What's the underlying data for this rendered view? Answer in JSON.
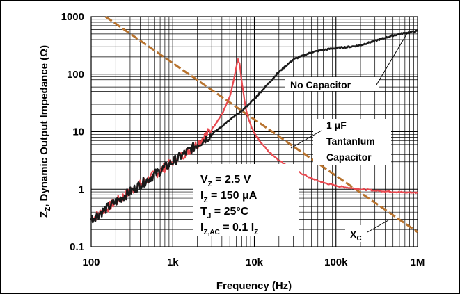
{
  "chart_data": {
    "type": "line",
    "xlabel": "Frequency (Hz)",
    "ylabel": {
      "main": "Z",
      "sub": "Z",
      "rest": ", Dynamic Output Impedance (Ω)"
    },
    "x_scale": "log",
    "y_scale": "log",
    "xlim": [
      100,
      1000000
    ],
    "ylim": [
      0.1,
      1000
    ],
    "x_ticks": [
      {
        "value": 100,
        "label": "100"
      },
      {
        "value": 1000,
        "label": "1k"
      },
      {
        "value": 10000,
        "label": "10k"
      },
      {
        "value": 100000,
        "label": "100k"
      },
      {
        "value": 1000000,
        "label": "1M"
      }
    ],
    "y_ticks": [
      {
        "value": 0.1,
        "label": "0.1"
      },
      {
        "value": 1,
        "label": "1"
      },
      {
        "value": 10,
        "label": "10"
      },
      {
        "value": 100,
        "label": "100"
      },
      {
        "value": 1000,
        "label": "1000"
      }
    ],
    "grid": true,
    "colors": {
      "no_capacitor": "#1a1a1a",
      "tantalum": "#e8484f",
      "xc": "#b8732e",
      "grid": "#000000"
    },
    "series": [
      {
        "key": "no_capacitor",
        "style": "solid",
        "x": [
          100,
          150,
          200,
          300,
          500,
          700,
          1000,
          1500,
          2000,
          3000,
          5000,
          7000,
          10000,
          15000,
          20000,
          30000,
          50000,
          70000,
          100000,
          150000,
          200000,
          300000,
          500000,
          700000,
          1000000
        ],
        "y": [
          0.3,
          0.45,
          0.6,
          0.9,
          1.5,
          2.1,
          3.0,
          4.5,
          6.0,
          9.0,
          16,
          23,
          37,
          70,
          110,
          180,
          240,
          265,
          285,
          300,
          320,
          380,
          470,
          520,
          560
        ]
      },
      {
        "key": "tantalum",
        "style": "solid",
        "x": [
          100,
          150,
          200,
          300,
          500,
          700,
          1000,
          1500,
          2000,
          3000,
          4000,
          5000,
          5500,
          6000,
          6300,
          6600,
          7000,
          7500,
          8000,
          9000,
          10000,
          12000,
          15000,
          20000,
          30000,
          50000,
          70000,
          100000,
          150000,
          200000,
          300000,
          500000,
          700000,
          1000000
        ],
        "y": [
          0.3,
          0.45,
          0.6,
          0.9,
          1.5,
          2.1,
          3.0,
          4.5,
          6.2,
          11,
          20,
          40,
          70,
          130,
          185,
          150,
          75,
          38,
          22,
          13,
          9.5,
          6.5,
          4.5,
          3.2,
          2.2,
          1.55,
          1.3,
          1.15,
          1.05,
          1.0,
          0.95,
          0.9,
          0.88,
          0.87
        ]
      },
      {
        "key": "xc",
        "style": "dashed",
        "x": [
          150,
          1000000
        ],
        "y": [
          1000,
          0.18
        ]
      }
    ],
    "annotations": [
      {
        "key": "no_cap",
        "lines": [
          "No Capacitor"
        ]
      },
      {
        "key": "tantalum",
        "lines": [
          "1 μF",
          "Tantanlum",
          "Capacitor"
        ]
      },
      {
        "key": "xc",
        "main": "X",
        "sub": "C"
      }
    ],
    "conditions": [
      {
        "main": "V",
        "sub": "Z",
        "rest": " = 2.5 V"
      },
      {
        "main": "I",
        "sub": "Z",
        "rest": " = 150 μA"
      },
      {
        "main": "T",
        "sub": "J",
        "rest": " = 25°C"
      },
      {
        "main": "I",
        "sub": "Z,AC",
        "rest": " = 0.1 I",
        "tail_sub": "Z"
      }
    ]
  }
}
